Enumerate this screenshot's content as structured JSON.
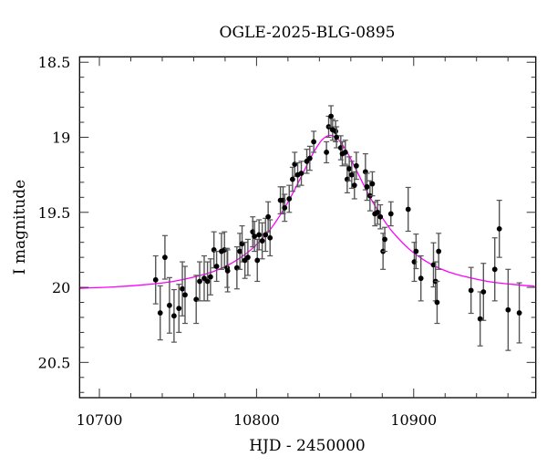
{
  "chart_data": {
    "type": "scatter",
    "title": "OGLE-2025-BLG-0895",
    "xlabel": "HJD - 2450000",
    "ylabel": "I magnitude",
    "xlim": [
      10687.4,
      10977.7
    ],
    "ylim": [
      20.735,
      18.464
    ],
    "y_inverted": true,
    "grid": false,
    "x_ticks": [
      "10700",
      "10800",
      "10900"
    ],
    "x_tick_values": [
      10700,
      10800,
      10900
    ],
    "y_ticks": [
      "18.5",
      "19",
      "19.5",
      "20",
      "20.5"
    ],
    "y_tick_values": [
      18.5,
      19,
      19.5,
      20,
      20.5
    ],
    "colors": {
      "points": "#000000",
      "errorbars": "#555555",
      "model": "#ff00ff"
    },
    "points": [
      [
        10735.8,
        19.95,
        0.16
      ],
      [
        10738.7,
        20.17,
        0.18
      ],
      [
        10741.7,
        19.8,
        0.145
      ],
      [
        10744.6,
        20.12,
        0.185
      ],
      [
        10747.5,
        20.19,
        0.175
      ],
      [
        10750.6,
        20.14,
        0.16
      ],
      [
        10752.8,
        20.01,
        0.18
      ],
      [
        10754.5,
        20.05,
        0.19
      ],
      [
        10761.6,
        20.08,
        0.16
      ],
      [
        10763.8,
        19.96,
        0.13
      ],
      [
        10766.7,
        19.94,
        0.15
      ],
      [
        10768.8,
        19.96,
        0.13
      ],
      [
        10770.7,
        19.93,
        0.12
      ],
      [
        10772.9,
        19.75,
        0.12
      ],
      [
        10774.6,
        19.86,
        0.1
      ],
      [
        10777.7,
        19.76,
        0.12
      ],
      [
        10779.6,
        19.75,
        0.12
      ],
      [
        10781.3,
        19.87,
        0.13
      ],
      [
        10781.6,
        19.89,
        0.14
      ],
      [
        10787.5,
        19.87,
        0.14
      ],
      [
        10789.4,
        19.76,
        0.12
      ],
      [
        10790.8,
        19.71,
        0.12
      ],
      [
        10792.6,
        19.82,
        0.12
      ],
      [
        10794.5,
        19.8,
        0.12
      ],
      [
        10797.6,
        19.63,
        0.1
      ],
      [
        10798.7,
        19.66,
        0.1
      ],
      [
        10800.5,
        19.82,
        0.14
      ],
      [
        10801.6,
        19.65,
        0.1
      ],
      [
        10803.6,
        19.69,
        0.12
      ],
      [
        10805.7,
        19.65,
        0.11
      ],
      [
        10807.4,
        19.53,
        0.1
      ],
      [
        10808.6,
        19.67,
        0.12
      ],
      [
        10815.2,
        19.42,
        0.09
      ],
      [
        10816.9,
        19.42,
        0.09
      ],
      [
        10817.9,
        19.47,
        0.09
      ],
      [
        10820.8,
        19.41,
        0.09
      ],
      [
        10822.9,
        19.28,
        0.08
      ],
      [
        10824.3,
        19.18,
        0.08
      ],
      [
        10826.2,
        19.25,
        0.08
      ],
      [
        10828.5,
        19.24,
        0.08
      ],
      [
        10832.0,
        19.16,
        0.08
      ],
      [
        10833.9,
        19.14,
        0.08
      ],
      [
        10836.4,
        19.03,
        0.07
      ],
      [
        10844.5,
        19.1,
        0.07
      ],
      [
        10845.9,
        18.93,
        0.07
      ],
      [
        10847.4,
        18.86,
        0.07
      ],
      [
        10848.4,
        18.95,
        0.07
      ],
      [
        10850.3,
        18.96,
        0.07
      ],
      [
        10850.9,
        19.0,
        0.07
      ],
      [
        10853.6,
        19.07,
        0.08
      ],
      [
        10854.6,
        19.11,
        0.08
      ],
      [
        10856.5,
        19.1,
        0.08
      ],
      [
        10857.7,
        19.28,
        0.09
      ],
      [
        10859.0,
        19.21,
        0.08
      ],
      [
        10860.6,
        19.25,
        0.09
      ],
      [
        10862.3,
        19.32,
        0.09
      ],
      [
        10863.5,
        19.19,
        0.09
      ],
      [
        10869.3,
        19.23,
        0.12
      ],
      [
        10870.3,
        19.33,
        0.09
      ],
      [
        10872.2,
        19.39,
        0.1
      ],
      [
        10873.7,
        19.31,
        0.08
      ],
      [
        10875.3,
        19.51,
        0.08
      ],
      [
        10877.0,
        19.5,
        0.08
      ],
      [
        10878.8,
        19.53,
        0.08
      ],
      [
        10880.5,
        19.76,
        0.12
      ],
      [
        10881.6,
        19.68,
        0.08
      ],
      [
        10885.5,
        19.51,
        0.08
      ],
      [
        10896.5,
        19.48,
        0.146
      ],
      [
        10900.4,
        19.83,
        0.13
      ],
      [
        10901.5,
        19.76,
        0.115
      ],
      [
        10904.6,
        19.94,
        0.15
      ],
      [
        10912.6,
        19.85,
        0.147
      ],
      [
        10913.9,
        19.96,
        0.13
      ],
      [
        10914.9,
        20.1,
        0.14
      ],
      [
        10915.9,
        19.76,
        0.12
      ],
      [
        10936.5,
        20.02,
        0.153
      ],
      [
        10942.3,
        20.21,
        0.18
      ],
      [
        10944.4,
        20.03,
        0.19
      ],
      [
        10951.6,
        19.88,
        0.21
      ],
      [
        10954.5,
        19.61,
        0.19
      ],
      [
        10960.1,
        20.15,
        0.27
      ],
      [
        10967.2,
        20.17,
        0.2
      ]
    ],
    "model": {
      "x": [
        10687,
        10707,
        10727,
        10747,
        10767,
        10777,
        10787,
        10797,
        10807,
        10812,
        10817,
        10822,
        10827,
        10832,
        10837,
        10842,
        10847,
        10852,
        10857,
        10862,
        10867,
        10872,
        10877,
        10882,
        10887,
        10897,
        10907,
        10917,
        10927,
        10947,
        10967,
        10977
      ],
      "y": [
        20.006,
        19.998,
        19.984,
        19.96,
        19.913,
        19.876,
        19.821,
        19.744,
        19.636,
        19.567,
        19.486,
        19.394,
        19.293,
        19.187,
        19.088,
        19.014,
        18.987,
        19.014,
        19.088,
        19.187,
        19.293,
        19.394,
        19.486,
        19.567,
        19.636,
        19.744,
        19.821,
        19.876,
        19.913,
        19.96,
        19.984,
        19.992
      ]
    }
  }
}
